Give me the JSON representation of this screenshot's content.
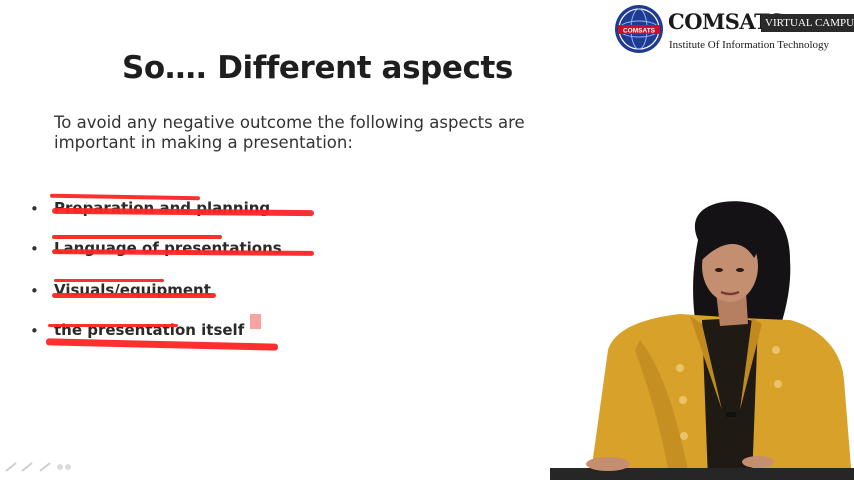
{
  "logo": {
    "name": "COMSATS",
    "badge": "VIRTUAL CAMPUS",
    "subtitle": "Institute Of Information Technology",
    "seal_text": "COMSATS"
  },
  "slide": {
    "title": "So…. Different aspects",
    "intro": "To avoid any negative outcome the following aspects are important in making a presentation:",
    "bullets": [
      {
        "text": "Preparation and planning"
      },
      {
        "text": "Language of presentations"
      },
      {
        "text": "Visuals/equipment"
      },
      {
        "text": "the presentation itself"
      }
    ]
  },
  "colors": {
    "annotation": "#ff2424",
    "jacket": "#d8a12a",
    "seal": "#1f3b8f"
  },
  "icons": [
    "seal-icon",
    "pen-icon",
    "cursor-icon"
  ]
}
